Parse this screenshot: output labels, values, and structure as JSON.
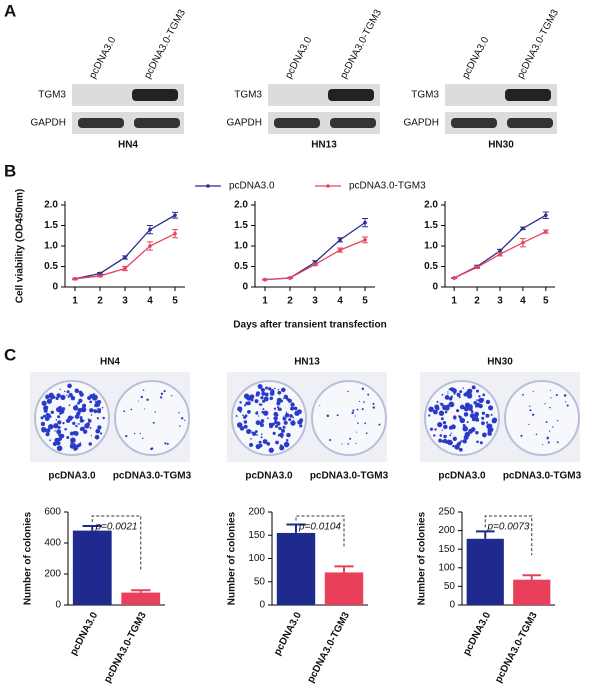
{
  "panel_labels": [
    "A",
    "B",
    "C"
  ],
  "blots": [
    {
      "cell_line": "HN4",
      "lanes": [
        "pcDNA3.0",
        "pcDNA3.0-TGM3"
      ],
      "rows": [
        "TGM3",
        "GAPDH"
      ]
    },
    {
      "cell_line": "HN13",
      "lanes": [
        "pcDNA3.0",
        "pcDNA3.0-TGM3"
      ],
      "rows": [
        "TGM3",
        "GAPDH"
      ]
    },
    {
      "cell_line": "HN30",
      "lanes": [
        "pcDNA3.0",
        "pcDNA3.0-TGM3"
      ],
      "rows": [
        "TGM3",
        "GAPDH"
      ]
    }
  ],
  "colonies": [
    {
      "title": "HN4",
      "labels": [
        "pcDNA3.0",
        "pcDNA3.0-TGM3"
      ]
    },
    {
      "title": "HN13",
      "labels": [
        "pcDNA3.0",
        "pcDNA3.0-TGM3"
      ]
    },
    {
      "title": "HN30",
      "labels": [
        "pcDNA3.0",
        "pcDNA3.0-TGM3"
      ]
    }
  ],
  "chart_data": [
    {
      "type": "line",
      "y_label": "Cell viability (OD450nm)",
      "x_label": "Days after transient transfection",
      "x": [
        1,
        2,
        3,
        4,
        5
      ],
      "xlim": [
        0.6,
        5.4
      ],
      "xticks": [
        1,
        2,
        3,
        4,
        5
      ],
      "ylim": [
        0,
        2
      ],
      "yticks": [
        0,
        0.5,
        {
          "value": 1,
          "label": "1.0"
        },
        1.5,
        {
          "value": 2,
          "label": "2.0"
        }
      ],
      "series": [
        {
          "name": "pcDNA3.0",
          "color": "#2b2f8f",
          "values": [
            0.2,
            0.33,
            0.72,
            1.4,
            1.75
          ],
          "errors": [
            0.02,
            0.02,
            0.04,
            0.1,
            0.07
          ]
        },
        {
          "name": "pcDNA3.0-TGM3",
          "color": "#e8445e",
          "values": [
            0.2,
            0.27,
            0.45,
            1.0,
            1.3
          ],
          "errors": [
            0.02,
            0.02,
            0.05,
            0.1,
            0.1
          ]
        }
      ]
    },
    {
      "type": "line",
      "x": [
        1,
        2,
        3,
        4,
        5
      ],
      "xlim": [
        0.6,
        5.4
      ],
      "xticks": [
        1,
        2,
        3,
        4,
        5
      ],
      "ylim": [
        0,
        2
      ],
      "yticks": [
        0,
        0.5,
        {
          "value": 1,
          "label": "1.0"
        },
        1.5,
        {
          "value": 2,
          "label": "2.0"
        }
      ],
      "series": [
        {
          "color": "#2b2f8f",
          "values": [
            0.18,
            0.22,
            0.6,
            1.15,
            1.57
          ],
          "errors": [
            0.01,
            0.01,
            0.04,
            0.05,
            0.1
          ]
        },
        {
          "color": "#e8445e",
          "values": [
            0.18,
            0.22,
            0.55,
            0.9,
            1.15
          ],
          "errors": [
            0.01,
            0.01,
            0.03,
            0.05,
            0.07
          ]
        }
      ]
    },
    {
      "type": "line",
      "x": [
        1,
        2,
        3,
        4,
        5
      ],
      "xlim": [
        0.6,
        5.4
      ],
      "xticks": [
        1,
        2,
        3,
        4,
        5
      ],
      "ylim": [
        0,
        2
      ],
      "yticks": [
        0,
        0.5,
        {
          "value": 1,
          "label": "1.0"
        },
        1.5,
        {
          "value": 2,
          "label": "2.0"
        }
      ],
      "series": [
        {
          "color": "#2b2f8f",
          "values": [
            0.22,
            0.5,
            0.88,
            1.43,
            1.75
          ],
          "errors": [
            0.01,
            0.03,
            0.04,
            0.03,
            0.08
          ]
        },
        {
          "color": "#e8445e",
          "values": [
            0.22,
            0.48,
            0.8,
            1.08,
            1.35
          ],
          "errors": [
            0.01,
            0.03,
            0.04,
            0.1,
            0.04
          ]
        }
      ]
    },
    {
      "type": "bar",
      "y_label": "Number of colonies",
      "annotation": "p=0.0021",
      "categories": [
        "pcDNA3.0",
        "pcDNA3.0-TGM3"
      ],
      "values": [
        480,
        80
      ],
      "errors": [
        30,
        15
      ],
      "colors": [
        "#1f2a8f",
        "#e8405a"
      ],
      "ylim": [
        0,
        600
      ],
      "yticks": [
        0,
        200,
        400,
        600
      ]
    },
    {
      "type": "bar",
      "y_label": "Number of colonies",
      "annotation": "p=0.0104",
      "categories": [
        "pcDNA3.0",
        "pcDNA3.0-TGM3"
      ],
      "values": [
        155,
        70
      ],
      "errors": [
        18,
        13
      ],
      "colors": [
        "#1f2a8f",
        "#e8405a"
      ],
      "ylim": [
        0,
        200
      ],
      "yticks": [
        0,
        50,
        100,
        150,
        200
      ]
    },
    {
      "type": "bar",
      "y_label": "Number of colonies",
      "annotation": "p=0.0073",
      "categories": [
        "pcDNA3.0",
        "pcDNA3.0-TGM3"
      ],
      "values": [
        178,
        68
      ],
      "errors": [
        20,
        12
      ],
      "colors": [
        "#1f2a8f",
        "#e8405a"
      ],
      "ylim": [
        0,
        250
      ],
      "yticks": [
        0,
        50,
        100,
        150,
        200,
        250
      ]
    }
  ]
}
